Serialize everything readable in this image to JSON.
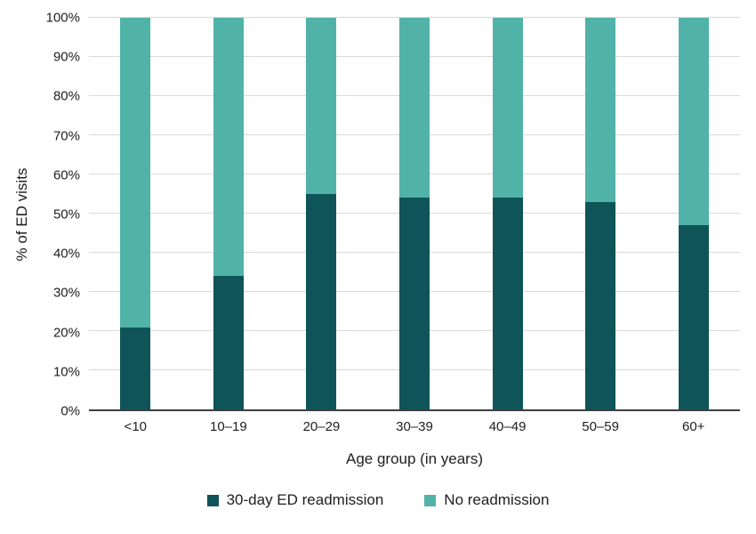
{
  "chart_data": {
    "type": "bar",
    "stacked": true,
    "title": "",
    "xlabel": "Age group (in years)",
    "ylabel": "% of ED visits",
    "ylim": [
      0,
      100
    ],
    "grid": true,
    "legend_position": "bottom",
    "categories": [
      "<10",
      "10–19",
      "20–29",
      "30–39",
      "40–49",
      "50–59",
      "60+"
    ],
    "y_ticks": [
      "0%",
      "10%",
      "20%",
      "30%",
      "40%",
      "50%",
      "60%",
      "70%",
      "80%",
      "90%",
      "100%"
    ],
    "series": [
      {
        "name": "30-day ED readmission",
        "color": "#0f5459",
        "values": [
          21,
          34,
          55,
          54,
          54,
          53,
          47
        ]
      },
      {
        "name": "No readmission",
        "color": "#51b2a8",
        "values": [
          79,
          66,
          45,
          46,
          46,
          47,
          53
        ]
      }
    ],
    "colors": {
      "background": "#ffffff",
      "gridline": "#d9d9d9",
      "axis_line": "#3f3f3f",
      "text": "#202020"
    }
  }
}
